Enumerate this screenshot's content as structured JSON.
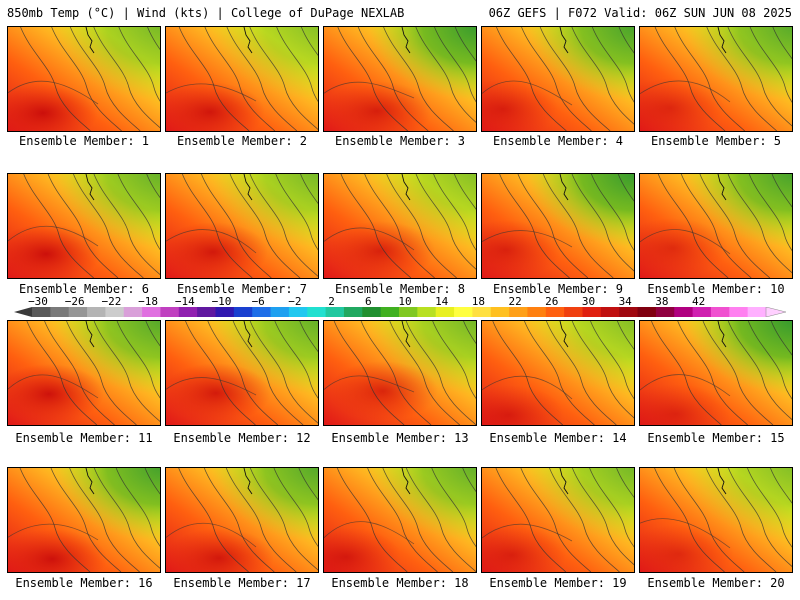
{
  "header": {
    "left_title": "850mb Temp (°C) | Wind (kts) | College of DuPage NEXLAB",
    "right_title": "06Z GEFS | F072 Valid: 06Z SUN JUN 08 2025"
  },
  "members": [
    {
      "label": "Ensemble Member: 1"
    },
    {
      "label": "Ensemble Member: 2"
    },
    {
      "label": "Ensemble Member: 3"
    },
    {
      "label": "Ensemble Member: 4"
    },
    {
      "label": "Ensemble Member: 5"
    },
    {
      "label": "Ensemble Member: 6"
    },
    {
      "label": "Ensemble Member: 7"
    },
    {
      "label": "Ensemble Member: 8"
    },
    {
      "label": "Ensemble Member: 9"
    },
    {
      "label": "Ensemble Member: 10"
    },
    {
      "label": "Ensemble Member: 11"
    },
    {
      "label": "Ensemble Member: 12"
    },
    {
      "label": "Ensemble Member: 13"
    },
    {
      "label": "Ensemble Member: 14"
    },
    {
      "label": "Ensemble Member: 15"
    },
    {
      "label": "Ensemble Member: 16"
    },
    {
      "label": "Ensemble Member: 17"
    },
    {
      "label": "Ensemble Member: 18"
    },
    {
      "label": "Ensemble Member: 19"
    },
    {
      "label": "Ensemble Member: 20"
    }
  ],
  "colorbar": {
    "ticks": [
      "−30",
      "−26",
      "−22",
      "−18",
      "−14",
      "−10",
      "−6",
      "−2",
      "2",
      "6",
      "10",
      "14",
      "18",
      "22",
      "26",
      "30",
      "34",
      "38",
      "42"
    ],
    "colors": [
      "#5a5a5a",
      "#7a7a7a",
      "#969696",
      "#b4b4b4",
      "#cccccc",
      "#d9a0d9",
      "#e070e0",
      "#c040c0",
      "#9020b0",
      "#6018a0",
      "#3018b0",
      "#1a40d0",
      "#1e6ee8",
      "#1ea0f0",
      "#20c8f0",
      "#20e0d0",
      "#20c8a0",
      "#20a860",
      "#209030",
      "#40b020",
      "#80c820",
      "#b8e020",
      "#e8f020",
      "#ffff40",
      "#ffe040",
      "#ffc020",
      "#ffa018",
      "#ff8010",
      "#ff6010",
      "#f04010",
      "#e02010",
      "#c01010",
      "#a00810",
      "#800010",
      "#900040",
      "#b00080",
      "#d020b0",
      "#f050d0",
      "#ff80f0",
      "#ffb0ff"
    ]
  }
}
